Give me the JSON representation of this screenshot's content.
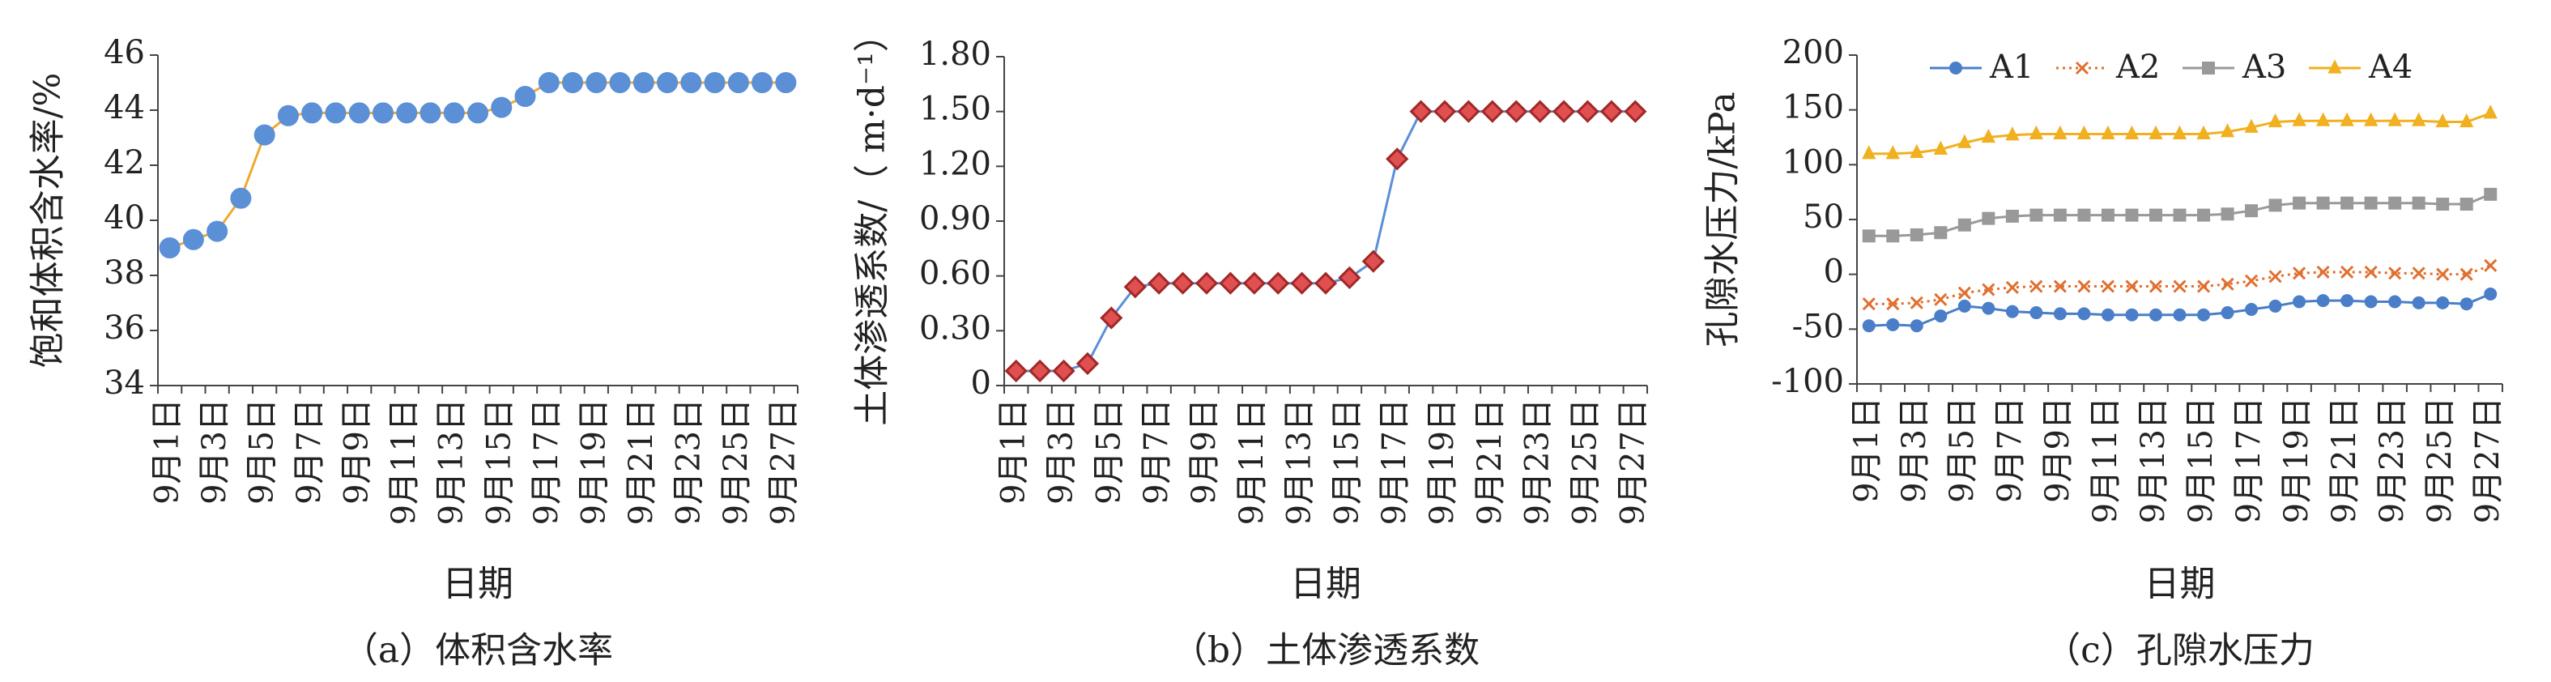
{
  "chart_data": [
    {
      "type": "line",
      "caption": "（a）体积含水率",
      "xlabel": "日期",
      "ylabel": "饱和体积含水率/%",
      "categories": [
        "9月1日",
        null,
        "9月3日",
        null,
        "9月5日",
        null,
        "9月7日",
        null,
        "9月9日",
        null,
        "9月11日",
        null,
        "9月13日",
        null,
        "9月15日",
        null,
        "9月17日",
        null,
        "9月19日",
        null,
        "9月21日",
        null,
        "9月23日",
        null,
        "9月25日",
        null,
        "9月27日"
      ],
      "series": [
        {
          "name": null,
          "color": "#f0a830",
          "marker": "circle",
          "marker_color": "#5b8fd6",
          "marker_edge": "#5b8fd6",
          "values": [
            39.0,
            39.3,
            39.6,
            40.8,
            43.1,
            43.8,
            43.9,
            43.9,
            43.9,
            43.9,
            43.9,
            43.9,
            43.9,
            43.9,
            44.1,
            44.5,
            45.0,
            45.0,
            45.0,
            45.0,
            45.0,
            45.0,
            45.0,
            45.0,
            45.0,
            45.0,
            45.0
          ]
        }
      ],
      "ylim": [
        34,
        46
      ],
      "yticks": [
        34,
        36,
        38,
        40,
        42,
        44,
        46
      ]
    },
    {
      "type": "line",
      "caption": "（b）土体渗透系数",
      "xlabel": "日期",
      "ylabel": "土体渗透系数/（ m·d⁻¹）",
      "categories": [
        "9月1日",
        null,
        "9月3日",
        null,
        "9月5日",
        null,
        "9月7日",
        null,
        "9月9日",
        null,
        "9月11日",
        null,
        "9月13日",
        null,
        "9月15日",
        null,
        "9月17日",
        null,
        "9月19日",
        null,
        "9月21日",
        null,
        "9月23日",
        null,
        "9月25日",
        null,
        "9月27日"
      ],
      "series": [
        {
          "name": null,
          "color": "#5b8fd6",
          "marker": "diamond",
          "marker_color": "#e05050",
          "marker_edge": "#a02828",
          "values": [
            0.08,
            0.08,
            0.08,
            0.12,
            0.37,
            0.54,
            0.56,
            0.56,
            0.56,
            0.56,
            0.56,
            0.56,
            0.56,
            0.56,
            0.59,
            0.68,
            1.24,
            1.5,
            1.5,
            1.5,
            1.5,
            1.5,
            1.5,
            1.5,
            1.5,
            1.5,
            1.5
          ]
        }
      ],
      "ylim": [
        0,
        1.8
      ],
      "yticks": [
        0,
        {
          "value": 0.3,
          "label": "0.30"
        },
        {
          "value": 0.6,
          "label": "0.60"
        },
        {
          "value": 0.9,
          "label": "0.90"
        },
        {
          "value": 1.2,
          "label": "1.20"
        },
        {
          "value": 1.5,
          "label": "1.50"
        },
        {
          "value": 1.8,
          "label": "1.80"
        }
      ]
    },
    {
      "type": "line",
      "caption": "（c）孔隙水压力",
      "xlabel": "日期",
      "ylabel": "孔隙水压力/kPa",
      "legend": "top",
      "categories": [
        "9月1日",
        null,
        "9月3日",
        null,
        "9月5日",
        null,
        "9月7日",
        null,
        "9月9日",
        null,
        "9月11日",
        null,
        "9月13日",
        null,
        "9月15日",
        null,
        "9月17日",
        null,
        "9月19日",
        null,
        "9月21日",
        null,
        "9月23日",
        null,
        "9月25日",
        null,
        "9月27日"
      ],
      "series": [
        {
          "name": "A1",
          "color": "#4a7ec8",
          "marker": "circle",
          "marker_color": "#4a7ec8",
          "marker_edge": "#4a7ec8",
          "values": [
            -47,
            -46,
            -47,
            -38,
            -29,
            -31,
            -34,
            -35,
            -36,
            -36,
            -37,
            -37,
            -37,
            -37,
            -37,
            -35,
            -32,
            -29,
            -25,
            -24,
            -24,
            -25,
            -25,
            -26,
            -26,
            -27,
            -18
          ]
        },
        {
          "name": "A2",
          "color": "#e07030",
          "marker": "x",
          "dash": "dotted",
          "marker_color": "#e07030",
          "marker_edge": "#e07030",
          "values": [
            -27,
            -27,
            -26,
            -23,
            -17,
            -14,
            -12,
            -11,
            -11,
            -11,
            -11,
            -11,
            -11,
            -11,
            -11,
            -9,
            -6,
            -2,
            1,
            2,
            2,
            2,
            1,
            1,
            0,
            0,
            8
          ]
        },
        {
          "name": "A3",
          "color": "#999999",
          "marker": "square",
          "marker_color": "#999999",
          "marker_edge": "#999999",
          "values": [
            35,
            35,
            36,
            38,
            45,
            51,
            53,
            54,
            54,
            54,
            54,
            54,
            54,
            54,
            54,
            55,
            58,
            63,
            65,
            65,
            65,
            65,
            65,
            65,
            64,
            64,
            73
          ]
        },
        {
          "name": "A4",
          "color": "#f0b020",
          "marker": "triangle",
          "marker_color": "#f0b020",
          "marker_edge": "#f0b020",
          "values": [
            110,
            110,
            111,
            114,
            120,
            125,
            127,
            128,
            128,
            128,
            128,
            128,
            128,
            128,
            128,
            130,
            134,
            139,
            140,
            140,
            140,
            140,
            140,
            140,
            139,
            139,
            147
          ]
        }
      ],
      "ylim": [
        -100,
        200
      ],
      "yticks": [
        -100,
        -50,
        0,
        50,
        100,
        150,
        200
      ]
    }
  ]
}
